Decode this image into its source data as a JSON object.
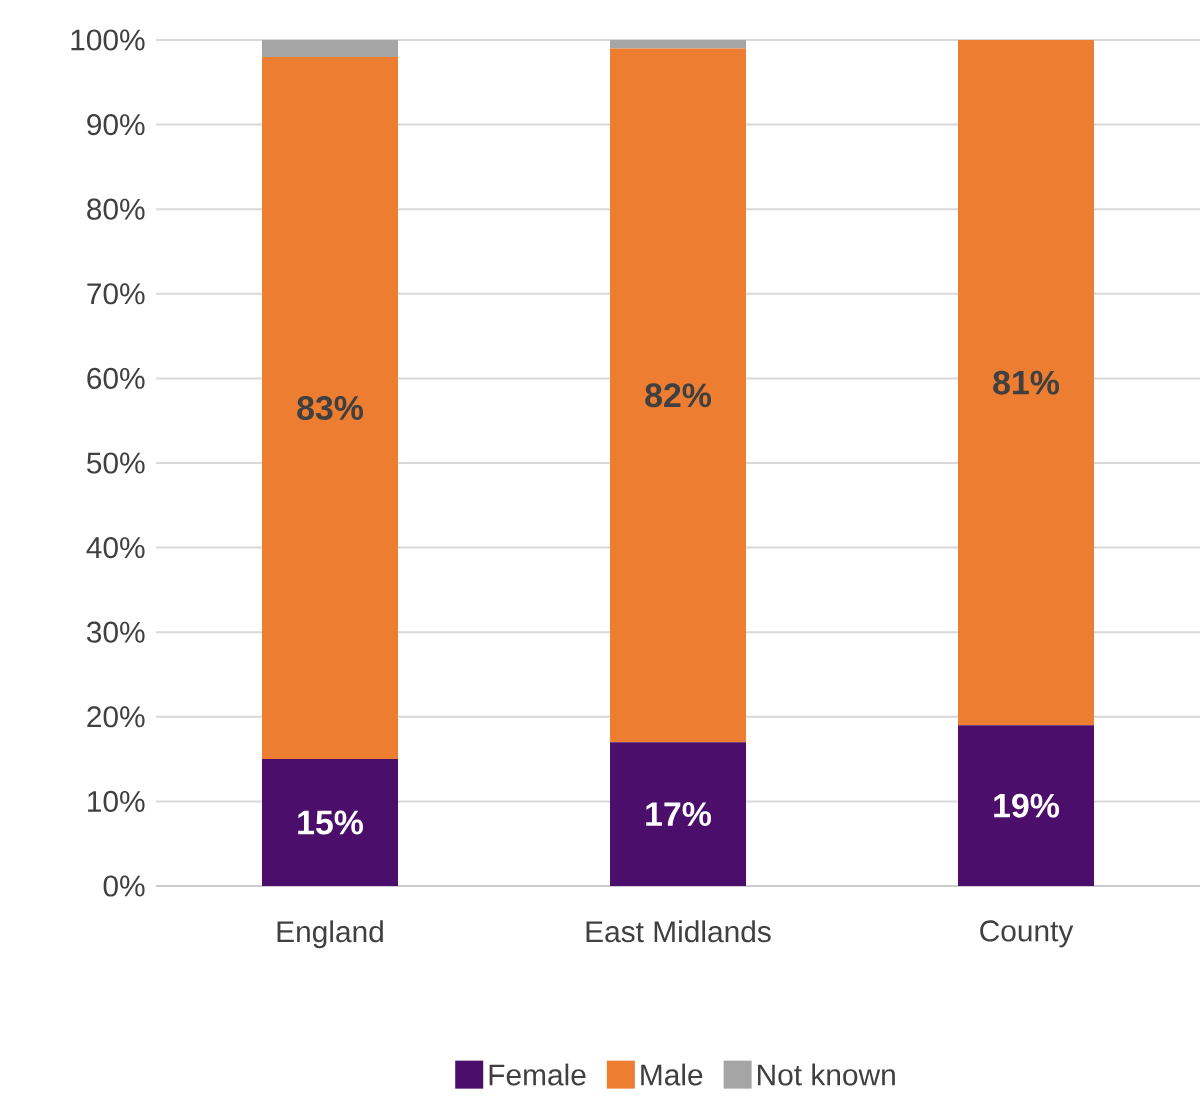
{
  "chart_data": {
    "type": "bar",
    "stacked": true,
    "categories": [
      "England",
      "East Midlands",
      "County"
    ],
    "series": [
      {
        "name": "Female",
        "color": "#4b0f6b",
        "values": [
          15,
          17,
          19
        ],
        "value_labels": [
          "15%",
          "17%",
          "19%"
        ]
      },
      {
        "name": "Male",
        "color": "#ed7d31",
        "values": [
          83,
          82,
          81
        ],
        "value_labels": [
          "83%",
          "82%",
          "81%"
        ]
      },
      {
        "name": "Not known",
        "color": "#a5a5a5",
        "values": [
          2,
          1,
          0
        ]
      }
    ],
    "ylim": [
      0,
      100
    ],
    "yticks": [
      {
        "value": 0,
        "label": "0%"
      },
      {
        "value": 10,
        "label": "10%"
      },
      {
        "value": 20,
        "label": "20%"
      },
      {
        "value": 30,
        "label": "30%"
      },
      {
        "value": 40,
        "label": "40%"
      },
      {
        "value": 50,
        "label": "50%"
      },
      {
        "value": 60,
        "label": "60%"
      },
      {
        "value": 70,
        "label": "70%"
      },
      {
        "value": 80,
        "label": "80%"
      },
      {
        "value": 90,
        "label": "90%"
      },
      {
        "value": 100,
        "label": "100%"
      }
    ],
    "grid": "y",
    "legend": "bottom"
  }
}
